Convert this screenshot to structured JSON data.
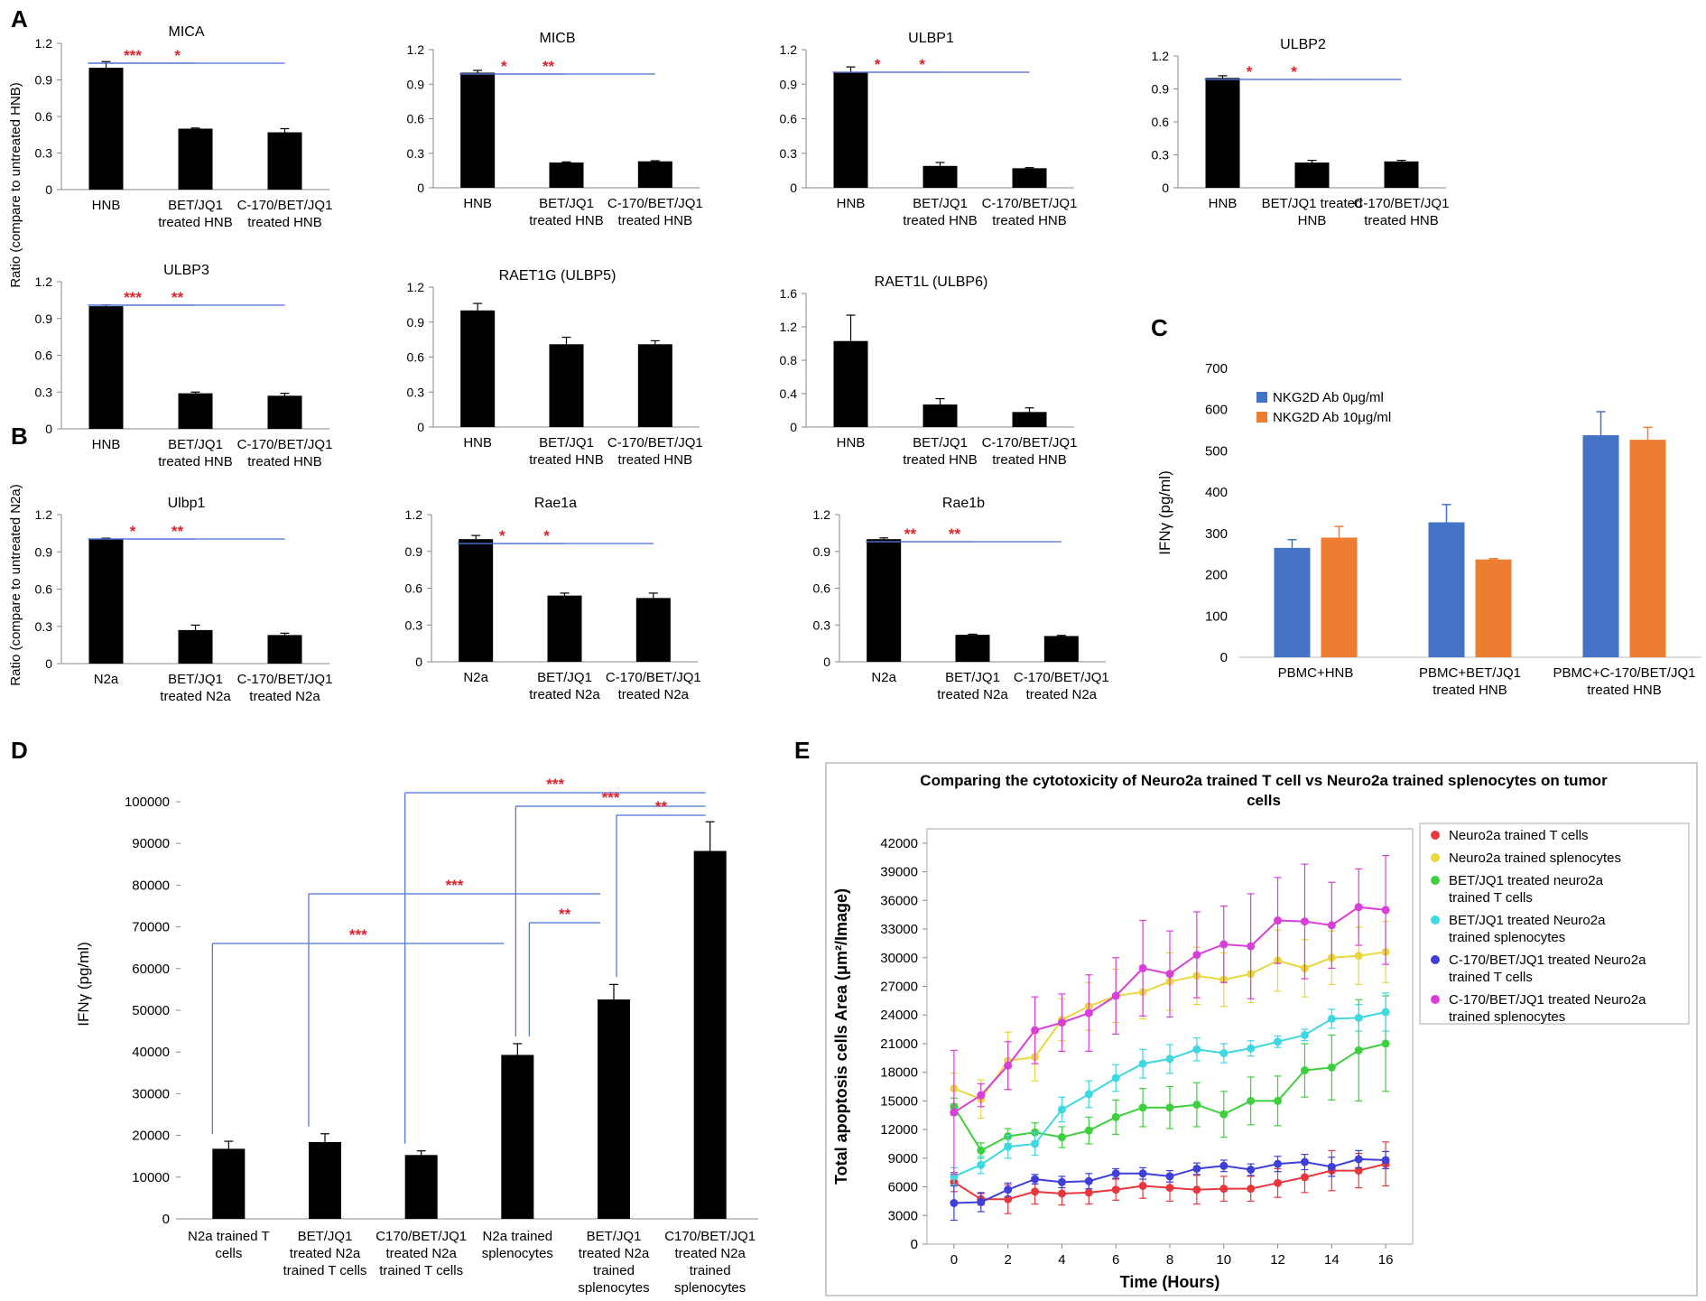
{
  "figure": {
    "panels": {
      "A": "A",
      "B": "B",
      "C": "C",
      "D": "D",
      "E": "E"
    },
    "ratio_axis_label_hnb": "Ratio (compare to untreated HNB)",
    "ratio_axis_label_n2a": "Ratio (compare to untreated N2a)"
  },
  "chart_data": [
    {
      "id": "mica",
      "type": "bar",
      "title": "MICA",
      "categories": [
        "HNB",
        "BET/JQ1|treated HNB",
        "C-170/BET/JQ1|treated HNB"
      ],
      "values": [
        1.0,
        0.5,
        0.47
      ],
      "errors": [
        0.05,
        0.005,
        0.03
      ],
      "ylim": [
        0,
        1.2
      ],
      "yticks": [
        "0",
        "0.3",
        "0.6",
        "0.9",
        "1.2"
      ],
      "significance": [
        {
          "from": 0,
          "to": 1,
          "label": "***"
        },
        {
          "from": 0,
          "to": 2,
          "label": "*"
        }
      ]
    },
    {
      "id": "micb",
      "type": "bar",
      "title": "MICB",
      "categories": [
        "HNB",
        "BET/JQ1|treated HNB",
        "C-170/BET/JQ1|treated HNB"
      ],
      "values": [
        1.0,
        0.22,
        0.23
      ],
      "errors": [
        0.02,
        0.005,
        0.005
      ],
      "ylim": [
        0,
        1.2
      ],
      "yticks": [
        "0",
        "0.3",
        "0.6",
        "0.9",
        "1.2"
      ],
      "significance": [
        {
          "from": 0,
          "to": 1,
          "label": "*"
        },
        {
          "from": 0,
          "to": 2,
          "label": "**"
        }
      ]
    },
    {
      "id": "ulbp1",
      "type": "bar",
      "title": "ULBP1",
      "categories": [
        "HNB",
        "BET/JQ1|treated HNB",
        "C-170/BET/JQ1|treated HNB"
      ],
      "values": [
        1.0,
        0.19,
        0.17
      ],
      "errors": [
        0.05,
        0.03,
        0.005
      ],
      "ylim": [
        0,
        1.2
      ],
      "yticks": [
        "0",
        "0.3",
        "0.6",
        "0.9",
        "1.2"
      ],
      "significance": [
        {
          "from": 0,
          "to": 1,
          "label": "*"
        },
        {
          "from": 0,
          "to": 2,
          "label": "*"
        }
      ]
    },
    {
      "id": "ulbp2",
      "type": "bar",
      "title": "ULBP2",
      "categories": [
        "HNB",
        "BET/JQ1 treated|HNB",
        "C-170/BET/JQ1|treated HNB"
      ],
      "values": [
        1.0,
        0.23,
        0.24
      ],
      "errors": [
        0.02,
        0.02,
        0.01
      ],
      "ylim": [
        0,
        1.2
      ],
      "yticks": [
        "0",
        "0.3",
        "0.6",
        "0.9",
        "1.2"
      ],
      "significance": [
        {
          "from": 0,
          "to": 1,
          "label": "*"
        },
        {
          "from": 0,
          "to": 2,
          "label": "*"
        }
      ]
    },
    {
      "id": "ulbp3",
      "type": "bar",
      "title": "ULBP3",
      "categories": [
        "HNB",
        "BET/JQ1|treated HNB",
        "C-170/BET/JQ1|treated HNB"
      ],
      "values": [
        1.0,
        0.29,
        0.27
      ],
      "errors": [
        0.01,
        0.01,
        0.02
      ],
      "ylim": [
        0,
        1.2
      ],
      "yticks": [
        "0",
        "0.3",
        "0.6",
        "0.9",
        "1.2"
      ],
      "significance": [
        {
          "from": 0,
          "to": 1,
          "label": "***"
        },
        {
          "from": 0,
          "to": 2,
          "label": "**"
        }
      ]
    },
    {
      "id": "raet1g",
      "type": "bar",
      "title": "RAET1G (ULBP5)",
      "categories": [
        "HNB",
        "BET/JQ1|treated HNB",
        "C-170/BET/JQ1|treated HNB"
      ],
      "values": [
        1.0,
        0.71,
        0.71
      ],
      "errors": [
        0.06,
        0.06,
        0.03
      ],
      "ylim": [
        0,
        1.2
      ],
      "yticks": [
        "0",
        "0.3",
        "0.6",
        "0.9",
        "1.2"
      ],
      "significance": []
    },
    {
      "id": "raet1l",
      "type": "bar",
      "title": "RAET1L (ULBP6)",
      "categories": [
        "HNB",
        "BET/JQ1|treated HNB",
        "C-170/BET/JQ1|treated HNB"
      ],
      "values": [
        1.03,
        0.27,
        0.18
      ],
      "errors": [
        0.31,
        0.07,
        0.05
      ],
      "ylim": [
        0,
        1.6
      ],
      "yticks": [
        "0",
        "0.4",
        "0.8",
        "1.2",
        "1.6"
      ],
      "significance": []
    },
    {
      "id": "ulbp1_mouse",
      "type": "bar",
      "title": "Ulbp1",
      "categories": [
        "N2a",
        "BET/JQ1|treated N2a",
        "C-170/BET/JQ1|treated N2a"
      ],
      "values": [
        1.0,
        0.27,
        0.23
      ],
      "errors": [
        0.01,
        0.04,
        0.015
      ],
      "ylim": [
        0,
        1.2
      ],
      "yticks": [
        "0",
        "0.3",
        "0.6",
        "0.9",
        "1.2"
      ],
      "significance": [
        {
          "from": 0,
          "to": 1,
          "label": "*"
        },
        {
          "from": 0,
          "to": 2,
          "label": "**"
        }
      ]
    },
    {
      "id": "rae1a",
      "type": "bar",
      "title": "Rae1a",
      "categories": [
        "N2a",
        "BET/JQ1|treated N2a",
        "C-170/BET/JQ1|treated N2a"
      ],
      "values": [
        1.0,
        0.54,
        0.52
      ],
      "errors": [
        0.03,
        0.02,
        0.04
      ],
      "ylim": [
        0,
        1.2
      ],
      "yticks": [
        "0",
        "0.3",
        "0.6",
        "0.9",
        "1.2"
      ],
      "significance": [
        {
          "from": 0,
          "to": 1,
          "label": "*"
        },
        {
          "from": 0,
          "to": 2,
          "label": "*"
        }
      ]
    },
    {
      "id": "rae1b",
      "type": "bar",
      "title": "Rae1b",
      "categories": [
        "N2a",
        "BET/JQ1|treated N2a",
        "C-170/BET/JQ1|treated N2a"
      ],
      "values": [
        1.0,
        0.22,
        0.21
      ],
      "errors": [
        0.01,
        0.005,
        0.005
      ],
      "ylim": [
        0,
        1.2
      ],
      "yticks": [
        "0",
        "0.3",
        "0.6",
        "0.9",
        "1.2"
      ],
      "significance": [
        {
          "from": 0,
          "to": 1,
          "label": "**"
        },
        {
          "from": 0,
          "to": 2,
          "label": "**"
        }
      ]
    },
    {
      "id": "panel_c",
      "type": "bar",
      "title": "",
      "ylabel": "IFNγ (pg/ml)",
      "ylim": [
        0,
        700
      ],
      "yticks": [
        "0",
        "100",
        "200",
        "300",
        "400",
        "500",
        "600",
        "700"
      ],
      "categories": [
        "PBMC+HNB",
        "PBMC+BET/JQ1|treated HNB",
        "PBMC+C-170/BET/JQ1|treated HNB"
      ],
      "series": [
        {
          "name": "NKG2D Ab 0μg/ml",
          "color": "#4472c4",
          "values": [
            265,
            327,
            538
          ],
          "errors": [
            20,
            43,
            57
          ]
        },
        {
          "name": "NKG2D Ab 10μg/ml",
          "color": "#ed7d31",
          "values": [
            290,
            237,
            527
          ],
          "errors": [
            27,
            2,
            30
          ]
        }
      ],
      "legend": "top-left"
    },
    {
      "id": "panel_d",
      "type": "bar",
      "title": "",
      "ylabel": "IFNγ (pg/ml)",
      "ylim": [
        0,
        100000
      ],
      "yticks": [
        "0",
        "10000",
        "20000",
        "30000",
        "40000",
        "50000",
        "60000",
        "70000",
        "80000",
        "90000",
        "100000"
      ],
      "categories": [
        "N2a trained T|cells",
        "BET/JQ1|treated N2a|trained T cells",
        "C170/BET/JQ1|treated N2a|trained T cells",
        "N2a trained|splenocytes",
        "BET/JQ1|treated N2a|trained|splenocytes",
        "C170/BET/JQ1|treated N2a|trained|splenocytes"
      ],
      "values": [
        16800,
        18400,
        15300,
        39300,
        52600,
        88200
      ],
      "errors": [
        1800,
        2000,
        1000,
        2700,
        3600,
        7000
      ],
      "significance": [
        {
          "from": 0,
          "to": 3,
          "label": "***"
        },
        {
          "from": 1,
          "to": 4,
          "label": "***"
        },
        {
          "from": 3,
          "to": 4,
          "label": "**"
        },
        {
          "from": 2,
          "to": 5,
          "label": "***"
        },
        {
          "from": 3,
          "to": 5,
          "label": "***"
        },
        {
          "from": 4,
          "to": 5,
          "label": "**"
        }
      ]
    },
    {
      "id": "panel_e",
      "type": "line",
      "title": "Comparing the cytotoxicity of Neuro2a trained T cell vs Neuro2a trained splenocytes on tumor|cells",
      "xlabel": "Time (Hours)",
      "ylabel": "Total apoptosis cells Area (μm²/Image)",
      "xlim": [
        -1,
        17
      ],
      "ylim": [
        0,
        43500
      ],
      "xticks": [
        0,
        2,
        4,
        6,
        8,
        10,
        12,
        14,
        16
      ],
      "yticks": [
        0,
        3000,
        6000,
        9000,
        12000,
        15000,
        18000,
        21000,
        24000,
        27000,
        30000,
        33000,
        36000,
        39000,
        42000
      ],
      "x": [
        0,
        1,
        2,
        3,
        4,
        5,
        6,
        7,
        8,
        9,
        10,
        11,
        12,
        13,
        14,
        15,
        16
      ],
      "series": [
        {
          "name": "Neuro2a trained T cells",
          "color": "#e8383d",
          "values": [
            6500,
            4700,
            4700,
            5500,
            5300,
            5400,
            5700,
            6100,
            5900,
            5700,
            5800,
            5800,
            6400,
            7000,
            7700,
            7700,
            8400
          ],
          "errors": [
            1000,
            600,
            1500,
            1300,
            1200,
            1200,
            1100,
            1300,
            1400,
            1500,
            1300,
            1300,
            1500,
            1600,
            2100,
            1800,
            2300
          ]
        },
        {
          "name": "Neuro2a trained splenocytes",
          "color": "#e8d83d",
          "values": [
            16300,
            15200,
            19200,
            19600,
            23500,
            24900,
            26000,
            26400,
            27500,
            28100,
            27700,
            28300,
            29700,
            28900,
            30000,
            30200,
            30600
          ],
          "errors": [
            1600,
            2000,
            3000,
            2500,
            2200,
            2500,
            2800,
            2800,
            3000,
            3000,
            2800,
            3000,
            3200,
            3000,
            2800,
            3000,
            3200
          ]
        },
        {
          "name": "BET/JQ1 treated neuro2a|trained T cells",
          "color": "#3ecf3e",
          "values": [
            14400,
            9800,
            11300,
            11700,
            11200,
            11900,
            13300,
            14300,
            14300,
            14600,
            13600,
            15000,
            15000,
            18200,
            18500,
            20300,
            21000
          ],
          "errors": [
            900,
            800,
            800,
            1000,
            1100,
            1400,
            1800,
            2000,
            2200,
            2300,
            2400,
            2500,
            2600,
            2800,
            3400,
            5300,
            5000
          ]
        },
        {
          "name": "BET/JQ1 treated Neuro2a|trained splenocytes",
          "color": "#3ed8e0",
          "values": [
            7100,
            8300,
            10200,
            10500,
            14100,
            15700,
            17400,
            18900,
            19400,
            20400,
            20000,
            20500,
            21200,
            21900,
            23600,
            23700,
            24300
          ],
          "errors": [
            900,
            900,
            1200,
            1200,
            1300,
            1400,
            1400,
            1500,
            1500,
            1200,
            1000,
            800,
            600,
            600,
            1000,
            1400,
            2000
          ]
        },
        {
          "name": "C-170/BET/JQ1 treated Neuro2a|trained T cells",
          "color": "#3e3ed8",
          "values": [
            4300,
            4400,
            5700,
            6800,
            6500,
            6600,
            7400,
            7400,
            7100,
            7900,
            8200,
            7800,
            8400,
            8600,
            8100,
            8900,
            8800
          ],
          "errors": [
            1800,
            1000,
            700,
            500,
            600,
            800,
            500,
            600,
            600,
            600,
            600,
            600,
            800,
            800,
            1000,
            900,
            900
          ]
        },
        {
          "name": "C-170/BET/JQ1 treated Neuro2a|trained splenocytes",
          "color": "#d83ed8",
          "values": [
            13800,
            15600,
            18700,
            22400,
            23200,
            24200,
            26000,
            28900,
            28300,
            30300,
            31400,
            31200,
            33900,
            33800,
            33400,
            35300,
            35000
          ],
          "errors": [
            6500,
            1200,
            2500,
            3500,
            3000,
            4000,
            4000,
            5000,
            4500,
            4500,
            4000,
            5500,
            4500,
            6000,
            4500,
            4000,
            5700
          ]
        }
      ],
      "legend": "right"
    }
  ]
}
